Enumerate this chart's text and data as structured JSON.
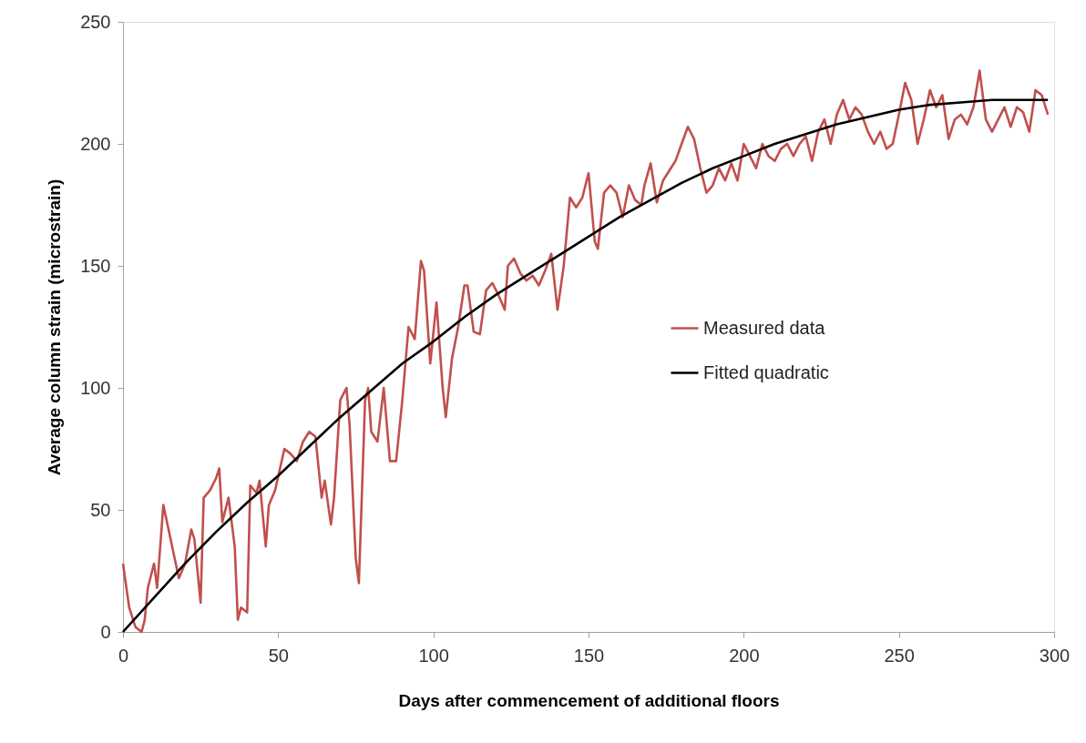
{
  "chart_data": {
    "type": "line",
    "xlabel": "Days after commencement of additional floors",
    "ylabel": "Average column strain (microstrain)",
    "xlim": [
      0,
      300
    ],
    "xticks": [
      0,
      50,
      100,
      150,
      200,
      250,
      300
    ],
    "ylim": [
      0,
      250
    ],
    "yticks": [
      0,
      50,
      100,
      150,
      200,
      250
    ],
    "grid": false,
    "legend": "right",
    "marker": "none",
    "line_style": "solid",
    "series": [
      {
        "name": "Measured data",
        "color": "#c0504d",
        "x": [
          0,
          2,
          4,
          6,
          7,
          8,
          10,
          11,
          13,
          15,
          18,
          20,
          22,
          23,
          25,
          26,
          28,
          30,
          31,
          32,
          34,
          36,
          37,
          38,
          40,
          41,
          43,
          44,
          46,
          47,
          49,
          52,
          54,
          56,
          58,
          60,
          62,
          64,
          65,
          67,
          68,
          70,
          72,
          73,
          75,
          76,
          78,
          79,
          80,
          82,
          84,
          86,
          88,
          90,
          92,
          94,
          96,
          97,
          99,
          101,
          103,
          104,
          106,
          108,
          110,
          111,
          113,
          115,
          117,
          119,
          121,
          123,
          124,
          126,
          128,
          130,
          132,
          134,
          136,
          138,
          140,
          142,
          144,
          146,
          148,
          150,
          152,
          153,
          155,
          157,
          159,
          161,
          163,
          165,
          167,
          168,
          170,
          172,
          174,
          178,
          180,
          182,
          184,
          186,
          188,
          190,
          192,
          194,
          196,
          198,
          200,
          202,
          204,
          206,
          208,
          210,
          212,
          214,
          216,
          218,
          220,
          222,
          224,
          226,
          228,
          230,
          232,
          234,
          236,
          238,
          240,
          242,
          244,
          246,
          248,
          250,
          252,
          254,
          256,
          258,
          260,
          262,
          264,
          266,
          268,
          270,
          272,
          274,
          276,
          278,
          280,
          282,
          284,
          286,
          288,
          290,
          292,
          294,
          296,
          298
        ],
        "values": [
          28,
          10,
          2,
          0,
          5,
          18,
          28,
          18,
          52,
          40,
          22,
          28,
          42,
          38,
          12,
          55,
          58,
          63,
          67,
          45,
          55,
          35,
          5,
          10,
          8,
          60,
          57,
          62,
          35,
          52,
          58,
          75,
          73,
          70,
          78,
          82,
          80,
          55,
          62,
          44,
          55,
          95,
          100,
          85,
          30,
          20,
          95,
          100,
          82,
          78,
          100,
          70,
          70,
          95,
          125,
          120,
          152,
          148,
          110,
          135,
          100,
          88,
          112,
          125,
          142,
          142,
          123,
          122,
          140,
          143,
          138,
          132,
          150,
          153,
          147,
          144,
          146,
          142,
          148,
          155,
          132,
          150,
          178,
          174,
          178,
          188,
          160,
          157,
          180,
          183,
          180,
          170,
          183,
          177,
          175,
          183,
          192,
          176,
          185,
          193,
          200,
          207,
          202,
          190,
          180,
          183,
          190,
          185,
          192,
          185,
          200,
          195,
          190,
          200,
          195,
          193,
          198,
          200,
          195,
          200,
          203,
          193,
          205,
          210,
          200,
          212,
          218,
          210,
          215,
          212,
          205,
          200,
          205,
          198,
          200,
          212,
          225,
          218,
          200,
          210,
          222,
          215,
          220,
          202,
          210,
          212,
          208,
          215,
          230,
          210,
          205,
          210,
          215,
          207,
          215,
          213,
          205,
          222,
          220,
          212
        ]
      },
      {
        "name": "Fitted quadratic",
        "color": "#000000",
        "x": [
          0,
          10,
          20,
          30,
          40,
          50,
          60,
          70,
          80,
          90,
          100,
          110,
          120,
          130,
          140,
          150,
          160,
          170,
          180,
          190,
          200,
          210,
          220,
          230,
          240,
          250,
          260,
          270,
          280,
          290,
          298
        ],
        "values": [
          0,
          14,
          28,
          41,
          53,
          64,
          76,
          88,
          99,
          110,
          119,
          129,
          138,
          146,
          154,
          162,
          170,
          177,
          184,
          190,
          195,
          200,
          204,
          208,
          211,
          214,
          216,
          217,
          218,
          218,
          218
        ]
      }
    ]
  }
}
